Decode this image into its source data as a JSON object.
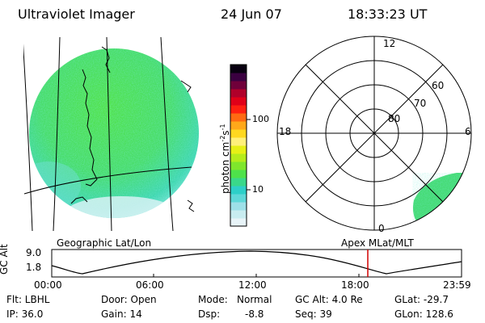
{
  "header": {
    "instrument": "Ultraviolet Imager",
    "date": "24 Jun 07",
    "time": "18:33:23 UT"
  },
  "colorbar": {
    "unit": "photon cm",
    "unit_exp1": "-2",
    "unit_s": "s",
    "unit_exp2": "-1",
    "ticks": [
      "100",
      "10"
    ],
    "colors": [
      "#e8f4f8",
      "#c8ecf0",
      "#9ee0e8",
      "#5fd8d8",
      "#2ecfc8",
      "#3ad88a",
      "#4ee24a",
      "#7fe62c",
      "#b5ec1c",
      "#e7f016",
      "#fff07a",
      "#ffd820",
      "#ffa81a",
      "#ff6a12",
      "#ff2010",
      "#e00018",
      "#b0002a",
      "#70003a",
      "#3a0040",
      "#080010"
    ]
  },
  "polar": {
    "labels": {
      "top": "12",
      "bottom": "0",
      "left": "18",
      "right": "6"
    },
    "lat_labels": [
      "80",
      "70",
      "60"
    ]
  },
  "panels": {
    "geo_label": "Geographic Lat/Lon",
    "apex_label": "Apex MLat/MLT"
  },
  "altitude_plot": {
    "ylabel": "GC Alt",
    "yticks": [
      "9.0",
      "1.8"
    ],
    "xticks": [
      "00:00",
      "06:00",
      "12:00",
      "18:00",
      "23:59"
    ],
    "marker_color": "#d00000"
  },
  "info": {
    "row1": {
      "flt": "Flt: LBHL",
      "door": "Door: Open",
      "mode_label": "Mode:",
      "mode_value": "Normal",
      "gcalt": "GC Alt: 4.0 Re",
      "glat": "GLat: -29.7"
    },
    "row2": {
      "ip": "IP: 36.0",
      "gain": "Gain: 14",
      "dsp_label": "Dsp:",
      "dsp_value": "-8.8",
      "seq": "Seq: 39",
      "glon": "GLon: 128.6"
    }
  }
}
